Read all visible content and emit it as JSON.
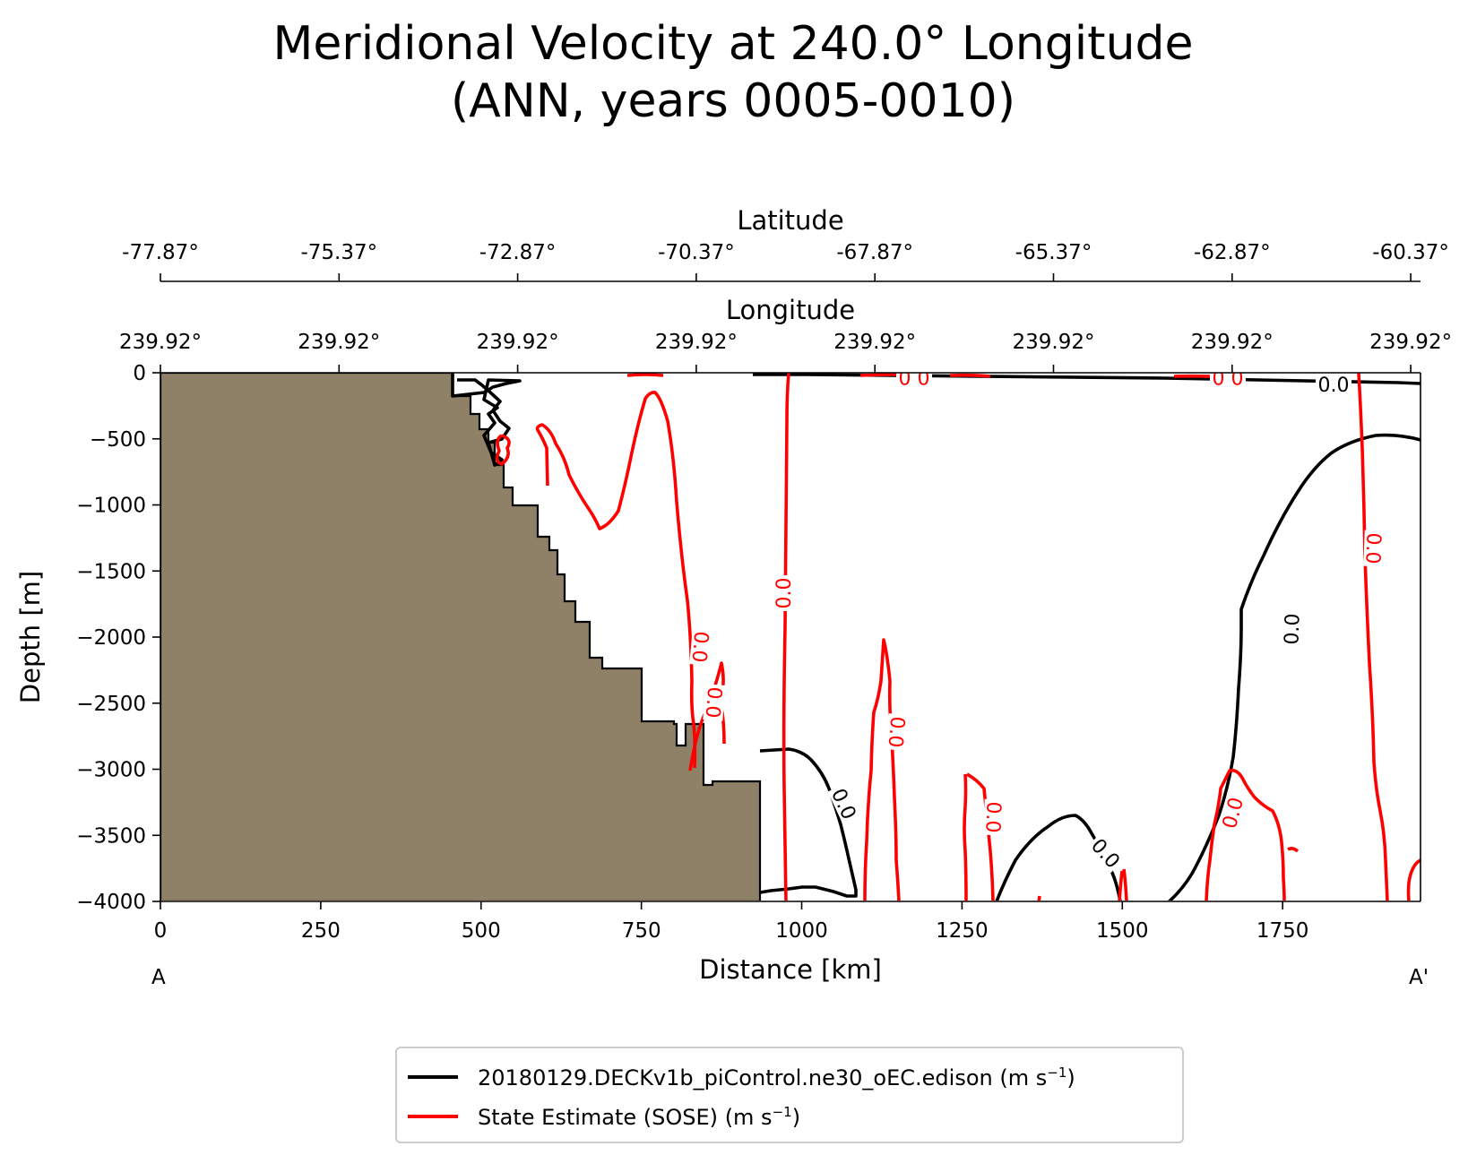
{
  "chart_data": {
    "type": "contour",
    "title_line1": "Meridional Velocity at 240.0° Longitude",
    "title_line2": "(ANN, years 0005-0010)",
    "xlabel": "Distance [km]",
    "ylabel": "Depth [m]",
    "xlim": [
      0,
      1965
    ],
    "ylim": [
      -4000,
      0
    ],
    "x_ticks": [
      "0",
      "250",
      "500",
      "750",
      "1000",
      "1250",
      "1500",
      "1750"
    ],
    "y_ticks": [
      "0",
      "−500",
      "−1000",
      "−1500",
      "−2000",
      "−2500",
      "−3000",
      "−3500",
      "−4000"
    ],
    "lat_axis_label": "Latitude",
    "lat_ticks": [
      "-77.87°",
      "-75.37°",
      "-72.87°",
      "-70.37°",
      "-67.87°",
      "-65.37°",
      "-62.87°",
      "-60.37°"
    ],
    "lon_axis_label": "Longitude",
    "lon_ticks": [
      "239.92°",
      "239.92°",
      "239.92°",
      "239.92°",
      "239.92°",
      "239.92°",
      "239.92°",
      "239.92°"
    ],
    "section_start": "A",
    "section_end": "A'",
    "contour_level_label": "0.0",
    "colors": {
      "model": "#000000",
      "obs": "#ff0000",
      "land": "#8f8068"
    },
    "series": [
      {
        "name": "20180129.DECKv1b_piControl.ne30_oEC.edison",
        "units_base": "(m s",
        "units_exp": "−1",
        "units_close": ")",
        "color": "#000000"
      },
      {
        "name": "State Estimate (SOSE)",
        "units_base": "(m s",
        "units_exp": "−1",
        "units_close": ")",
        "color": "#ff0000"
      }
    ]
  }
}
